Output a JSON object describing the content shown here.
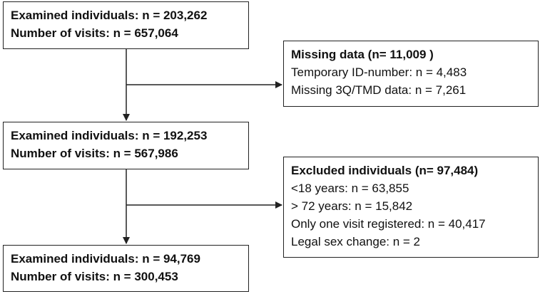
{
  "flow": {
    "step1": {
      "line1": "Examined individuals: n = 203,262",
      "line2": "Number of visits: n  = 657,064"
    },
    "missing": {
      "title": "Missing data (n= 11,009 )",
      "items": [
        "Temporary ID-number: n = 4,483",
        "Missing 3Q/TMD data: n = 7,261"
      ]
    },
    "step2": {
      "line1": "Examined individuals: n = 192,253",
      "line2": "Number of visits: n = 567,986"
    },
    "excluded": {
      "title": "Excluded individuals (n=  97,484)",
      "items": [
        "<18 years: n = 63,855",
        "> 72 years: n = 15,842",
        "Only one visit registered: n = 40,417",
        "Legal sex change: n = 2"
      ]
    },
    "step3": {
      "line1": "Examined individuals:  n = 94,769",
      "line2": "Number of visits: n  = 300,453"
    }
  },
  "colors": {
    "border": "#222222",
    "text": "#111111"
  }
}
